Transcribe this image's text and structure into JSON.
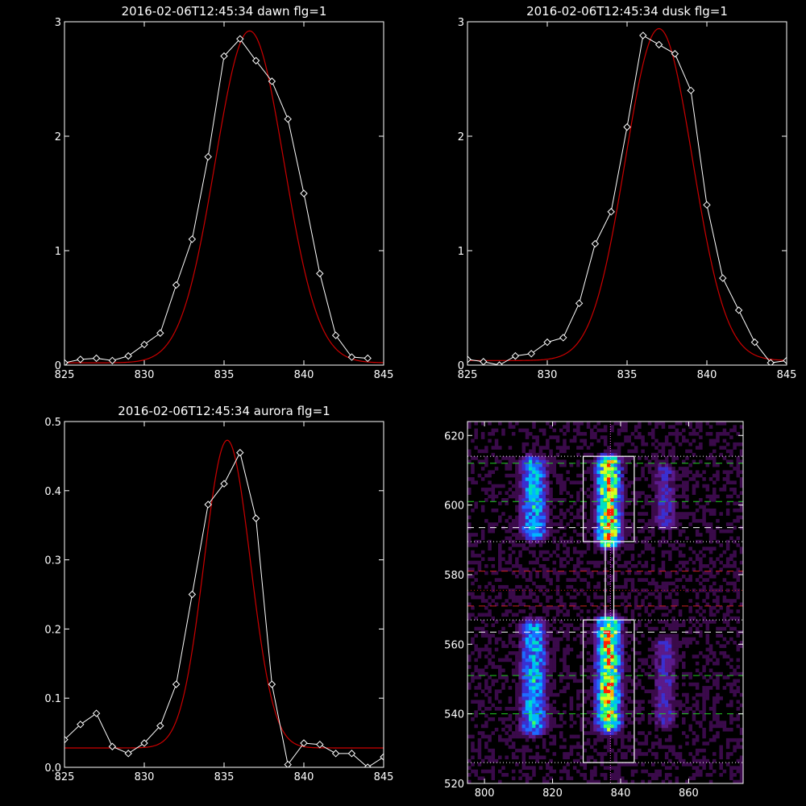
{
  "chart_data": [
    {
      "id": "dawn",
      "type": "line",
      "title": "2016-02-06T12:45:34 dawn flg=1",
      "xlim": [
        825,
        845
      ],
      "ylim": [
        0,
        3
      ],
      "xticks": [
        825,
        830,
        835,
        840,
        845
      ],
      "yticks": [
        0,
        1,
        2,
        3
      ],
      "series": [
        {
          "kind": "observed",
          "color": "#ffffff",
          "marker": "diamond",
          "x": [
            825,
            826,
            827,
            828,
            829,
            830,
            831,
            832,
            833,
            834,
            835,
            836,
            837,
            838,
            839,
            840,
            841,
            842,
            843,
            844
          ],
          "y": [
            0.02,
            0.05,
            0.06,
            0.04,
            0.08,
            0.18,
            0.28,
            0.7,
            1.1,
            1.82,
            2.7,
            2.85,
            2.66,
            2.48,
            2.15,
            1.5,
            0.8,
            0.26,
            0.07,
            0.06
          ]
        },
        {
          "kind": "fit",
          "color": "#cc0000",
          "gaussian": {
            "amplitude": 2.9,
            "center": 836.6,
            "sigma": 2.15,
            "offset": 0.02
          },
          "x": [
            825,
            845
          ]
        }
      ]
    },
    {
      "id": "dusk",
      "type": "line",
      "title": "2016-02-06T12:45:34 dusk flg=1",
      "xlim": [
        825,
        845
      ],
      "ylim": [
        0,
        3
      ],
      "xticks": [
        825,
        830,
        835,
        840,
        845
      ],
      "yticks": [
        0,
        1,
        2,
        3
      ],
      "series": [
        {
          "kind": "observed",
          "color": "#ffffff",
          "marker": "diamond",
          "x": [
            825,
            826,
            827,
            828,
            829,
            830,
            831,
            832,
            833,
            834,
            835,
            836,
            837,
            838,
            839,
            840,
            841,
            842,
            843,
            844,
            845
          ],
          "y": [
            0.05,
            0.03,
            0.0,
            0.08,
            0.1,
            0.2,
            0.24,
            0.54,
            1.06,
            1.34,
            2.08,
            2.88,
            2.8,
            2.72,
            2.4,
            1.4,
            0.76,
            0.48,
            0.2,
            0.02,
            0.04
          ]
        },
        {
          "kind": "fit",
          "color": "#cc0000",
          "gaussian": {
            "amplitude": 2.9,
            "center": 837.0,
            "sigma": 2.1,
            "offset": 0.04
          },
          "x": [
            825,
            845
          ]
        }
      ]
    },
    {
      "id": "aurora",
      "type": "line",
      "title": "2016-02-06T12:45:34 aurora flg=1",
      "xlim": [
        825,
        845
      ],
      "ylim": [
        0,
        0.5
      ],
      "xticks": [
        825,
        830,
        835,
        840,
        845
      ],
      "yticks": [
        0.0,
        0.1,
        0.2,
        0.3,
        0.4,
        0.5
      ],
      "series": [
        {
          "kind": "observed",
          "color": "#ffffff",
          "marker": "diamond",
          "x": [
            825,
            826,
            827,
            828,
            829,
            830,
            831,
            832,
            833,
            834,
            835,
            836,
            837,
            838,
            839,
            840,
            841,
            842,
            843,
            844,
            845
          ],
          "y": [
            0.04,
            0.062,
            0.078,
            0.03,
            0.02,
            0.035,
            0.06,
            0.12,
            0.25,
            0.38,
            0.41,
            0.455,
            0.36,
            0.12,
            0.004,
            0.035,
            0.033,
            0.02,
            0.02,
            0.0,
            0.015
          ]
        },
        {
          "kind": "fit",
          "color": "#cc0000",
          "gaussian": {
            "amplitude": 0.445,
            "center": 835.2,
            "sigma": 1.45,
            "offset": 0.028
          },
          "x": [
            825,
            845
          ]
        }
      ]
    },
    {
      "id": "image",
      "type": "heatmap",
      "xlim": [
        795,
        876
      ],
      "ylim": [
        520,
        624
      ],
      "xticks": [
        800,
        820,
        840,
        860
      ],
      "yticks": [
        520,
        540,
        560,
        580,
        600,
        620
      ],
      "colormap": [
        "#000000",
        "#3a0a4a",
        "#5b1a8a",
        "#3a2fd0",
        "#1e6bff",
        "#00b7ff",
        "#00e0c0",
        "#40ff60",
        "#d8ff20",
        "#ffb000",
        "#ff2000"
      ],
      "emission_bands": [
        {
          "x_center": 814.5,
          "x_width": 4.5,
          "y_ranges": [
            [
              592,
              612
            ],
            [
              536,
              565
            ]
          ],
          "peak": 0.6
        },
        {
          "x_center": 836.5,
          "x_width": 4.0,
          "y_ranges": [
            [
              590,
              612
            ],
            [
              537,
              566
            ]
          ],
          "peak": 1.0
        },
        {
          "x_center": 853,
          "x_width": 4.0,
          "y_ranges": [
            [
              595,
              610
            ],
            [
              538,
              560
            ]
          ],
          "peak": 0.3
        }
      ],
      "boxes": [
        {
          "x": [
            829,
            844
          ],
          "y": [
            589.5,
            614
          ]
        },
        {
          "x": [
            829,
            844
          ],
          "y": [
            526,
            567
          ]
        }
      ],
      "connector": {
        "x": [
          835.5,
          838
        ],
        "y": [
          567,
          589.5
        ]
      },
      "vertical_line": {
        "x": 837,
        "color": "#ff66ff",
        "style": "dotted"
      },
      "hlines": [
        {
          "y": 614,
          "color": "#ffffff",
          "style": "dotted"
        },
        {
          "y": 612,
          "color": "#22cc22",
          "style": "dashed"
        },
        {
          "y": 601,
          "color": "#22cc22",
          "style": "dashed"
        },
        {
          "y": 593.5,
          "color": "#ffffff",
          "style": "dashed"
        },
        {
          "y": 589.5,
          "color": "#ffffff",
          "style": "dotted"
        },
        {
          "y": 581,
          "color": "#cc2222",
          "style": "dashed"
        },
        {
          "y": 575.5,
          "color": "#cc2222",
          "style": "dotted"
        },
        {
          "y": 571,
          "color": "#cc2222",
          "style": "dashed"
        },
        {
          "y": 567,
          "color": "#ffffff",
          "style": "dotted"
        },
        {
          "y": 563.5,
          "color": "#ffffff",
          "style": "dashed"
        },
        {
          "y": 551,
          "color": "#22cc22",
          "style": "dashed"
        },
        {
          "y": 540,
          "color": "#22cc22",
          "style": "dashed"
        },
        {
          "y": 526,
          "color": "#ffffff",
          "style": "dotted"
        }
      ]
    }
  ]
}
